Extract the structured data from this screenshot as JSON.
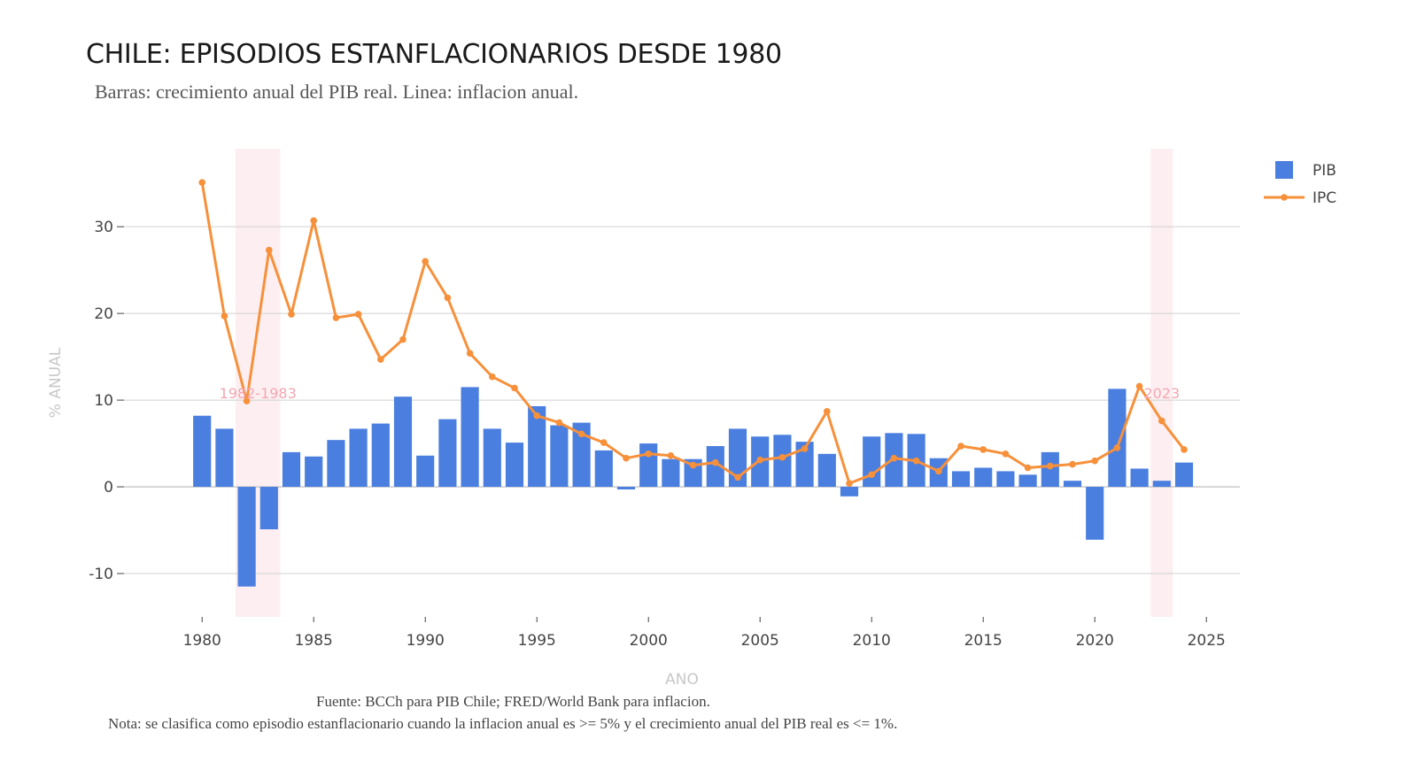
{
  "title": "CHILE: EPISODIOS ESTANFLACIONARIOS DESDE 1980",
  "subtitle": "Barras: crecimiento anual del PIB real. Linea: inflacion anual.",
  "footer": {
    "source": "Fuente: BCCh para PIB Chile; FRED/World Bank para inflacion.",
    "note": "Nota: se clasifica como episodio estanflacionario cuando la inflacion anual es >= 5% y el crecimiento anual del PIB real es <= 1%."
  },
  "colors": {
    "bar": "#4a7fe0",
    "line": "#f7903a",
    "band": "#fdeff1",
    "annotation": "#f4a6b2",
    "grid": "#d0d0d0"
  },
  "chart_data": {
    "type": "bar",
    "title": "CHILE: EPISODIOS ESTANFLACIONARIOS DESDE 1980",
    "xlabel": "ANO",
    "ylabel": "% ANUAL",
    "xlim": [
      1976.5,
      2026.5
    ],
    "ylim": [
      -15,
      39
    ],
    "xticks": [
      1980,
      1985,
      1990,
      1995,
      2000,
      2005,
      2010,
      2015,
      2020,
      2025
    ],
    "yticks": [
      -10,
      0,
      10,
      20,
      30
    ],
    "grid": true,
    "legend_position": "top-right",
    "x": [
      1980,
      1981,
      1982,
      1983,
      1984,
      1985,
      1986,
      1987,
      1988,
      1989,
      1990,
      1991,
      1992,
      1993,
      1994,
      1995,
      1996,
      1997,
      1998,
      1999,
      2000,
      2001,
      2002,
      2003,
      2004,
      2005,
      2006,
      2007,
      2008,
      2009,
      2010,
      2011,
      2012,
      2013,
      2014,
      2015,
      2016,
      2017,
      2018,
      2019,
      2020,
      2021,
      2022,
      2023,
      2024
    ],
    "series": [
      {
        "name": "PIB",
        "type": "bar",
        "values": [
          8.2,
          6.7,
          -11.5,
          -4.9,
          4.0,
          3.5,
          5.4,
          6.7,
          7.3,
          10.4,
          3.6,
          7.8,
          11.5,
          6.7,
          5.1,
          9.3,
          7.1,
          7.4,
          4.2,
          -0.3,
          5.0,
          3.2,
          3.2,
          4.7,
          6.7,
          5.8,
          6.0,
          5.2,
          3.8,
          -1.1,
          5.8,
          6.2,
          6.1,
          3.3,
          1.8,
          2.2,
          1.8,
          1.4,
          4.0,
          0.7,
          -6.1,
          11.3,
          2.1,
          0.7,
          2.8
        ]
      },
      {
        "name": "IPC",
        "type": "line",
        "values": [
          35.1,
          19.7,
          9.9,
          27.3,
          19.9,
          30.7,
          19.5,
          19.9,
          14.7,
          17.0,
          26.0,
          21.8,
          15.4,
          12.7,
          11.4,
          8.2,
          7.4,
          6.1,
          5.1,
          3.3,
          3.8,
          3.6,
          2.5,
          2.8,
          1.1,
          3.1,
          3.4,
          4.4,
          8.7,
          0.4,
          1.4,
          3.3,
          3.0,
          1.8,
          4.7,
          4.3,
          3.8,
          2.2,
          2.4,
          2.6,
          3.0,
          4.5,
          11.6,
          7.6,
          4.3
        ]
      }
    ],
    "episodes": [
      {
        "label": "1982-1983",
        "start": 1982,
        "end": 1983
      },
      {
        "label": "2023",
        "start": 2023,
        "end": 2023
      }
    ]
  }
}
